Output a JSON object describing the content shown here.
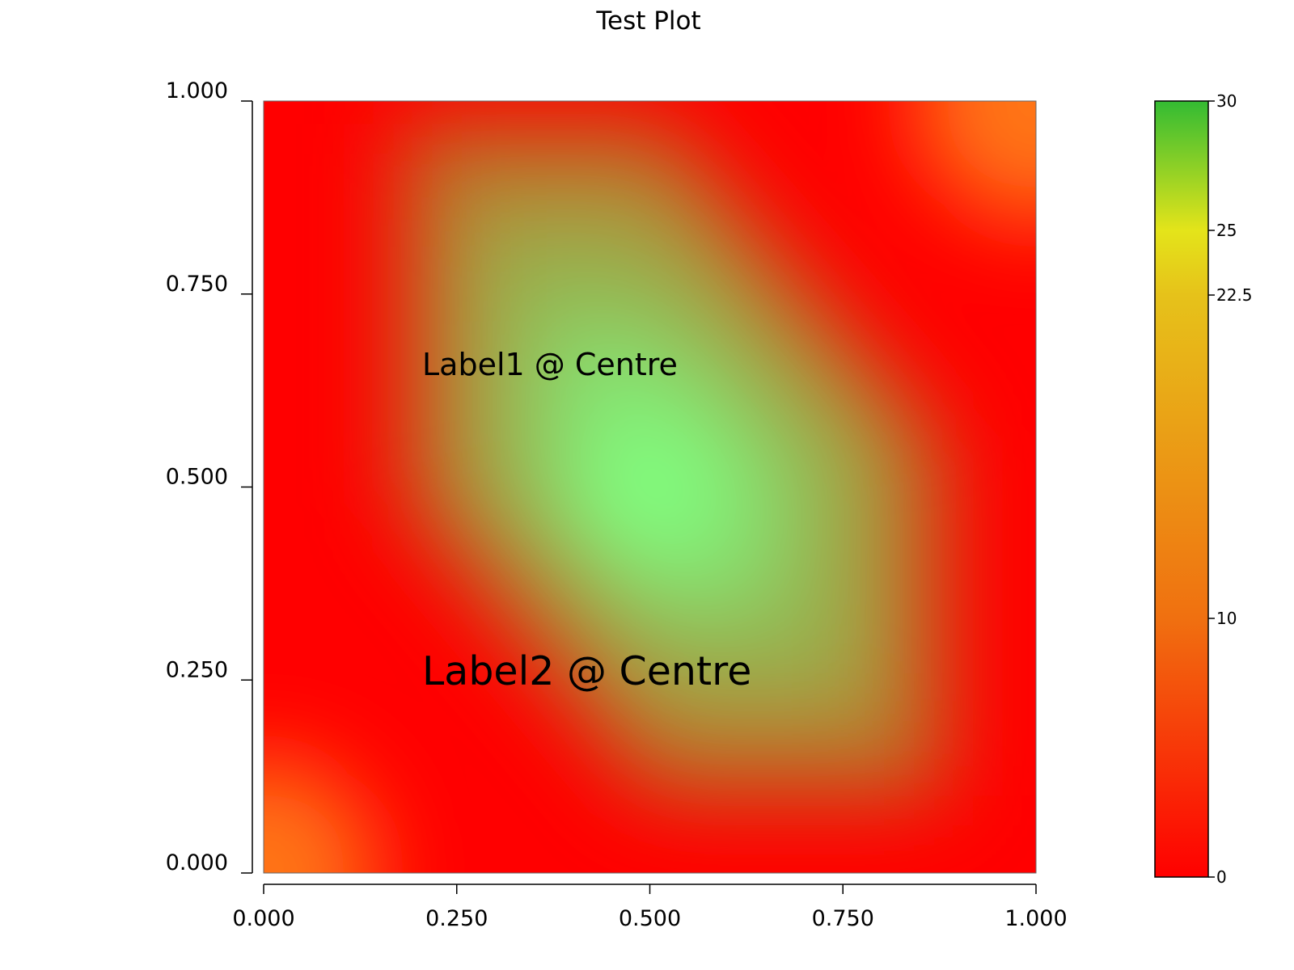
{
  "chart_data": {
    "type": "heatmap",
    "title": "Test Plot",
    "xlabel": "",
    "ylabel": "",
    "xlim": [
      0,
      1
    ],
    "ylim": [
      0,
      1
    ],
    "x_ticks": [
      "0.000",
      "0.250",
      "0.500",
      "0.750",
      "1.000"
    ],
    "y_ticks": [
      "0.000",
      "0.250",
      "0.500",
      "0.750",
      "1.000"
    ],
    "z_range": [
      0,
      30
    ],
    "colorbar_ticks": [
      {
        "value": 0,
        "label": "0"
      },
      {
        "value": 10,
        "label": "10"
      },
      {
        "value": 22.5,
        "label": "22.5"
      },
      {
        "value": 25,
        "label": "25"
      },
      {
        "value": 30,
        "label": "30"
      }
    ],
    "colorscale": [
      {
        "value": 0,
        "color": "#ff0000"
      },
      {
        "value": 10,
        "color": "#f07010"
      },
      {
        "value": 22.5,
        "color": "#e6c21a"
      },
      {
        "value": 25,
        "color": "#e4e41a"
      },
      {
        "value": 30,
        "color": "#33bb33"
      }
    ],
    "field_colors": {
      "low": "#ff0000",
      "peak": "#80ff80",
      "corner": "#ff7518"
    },
    "peak_point": {
      "x": 0.5,
      "y": 0.5
    },
    "annotations": [
      {
        "text": "Label1 @ Centre",
        "x": 0.5,
        "y": 0.65,
        "size": "medium"
      },
      {
        "text": "Label2 @ Centre",
        "x": 0.5,
        "y": 0.25,
        "size": "large"
      }
    ],
    "grid": false,
    "legend": "colorbar-right"
  }
}
